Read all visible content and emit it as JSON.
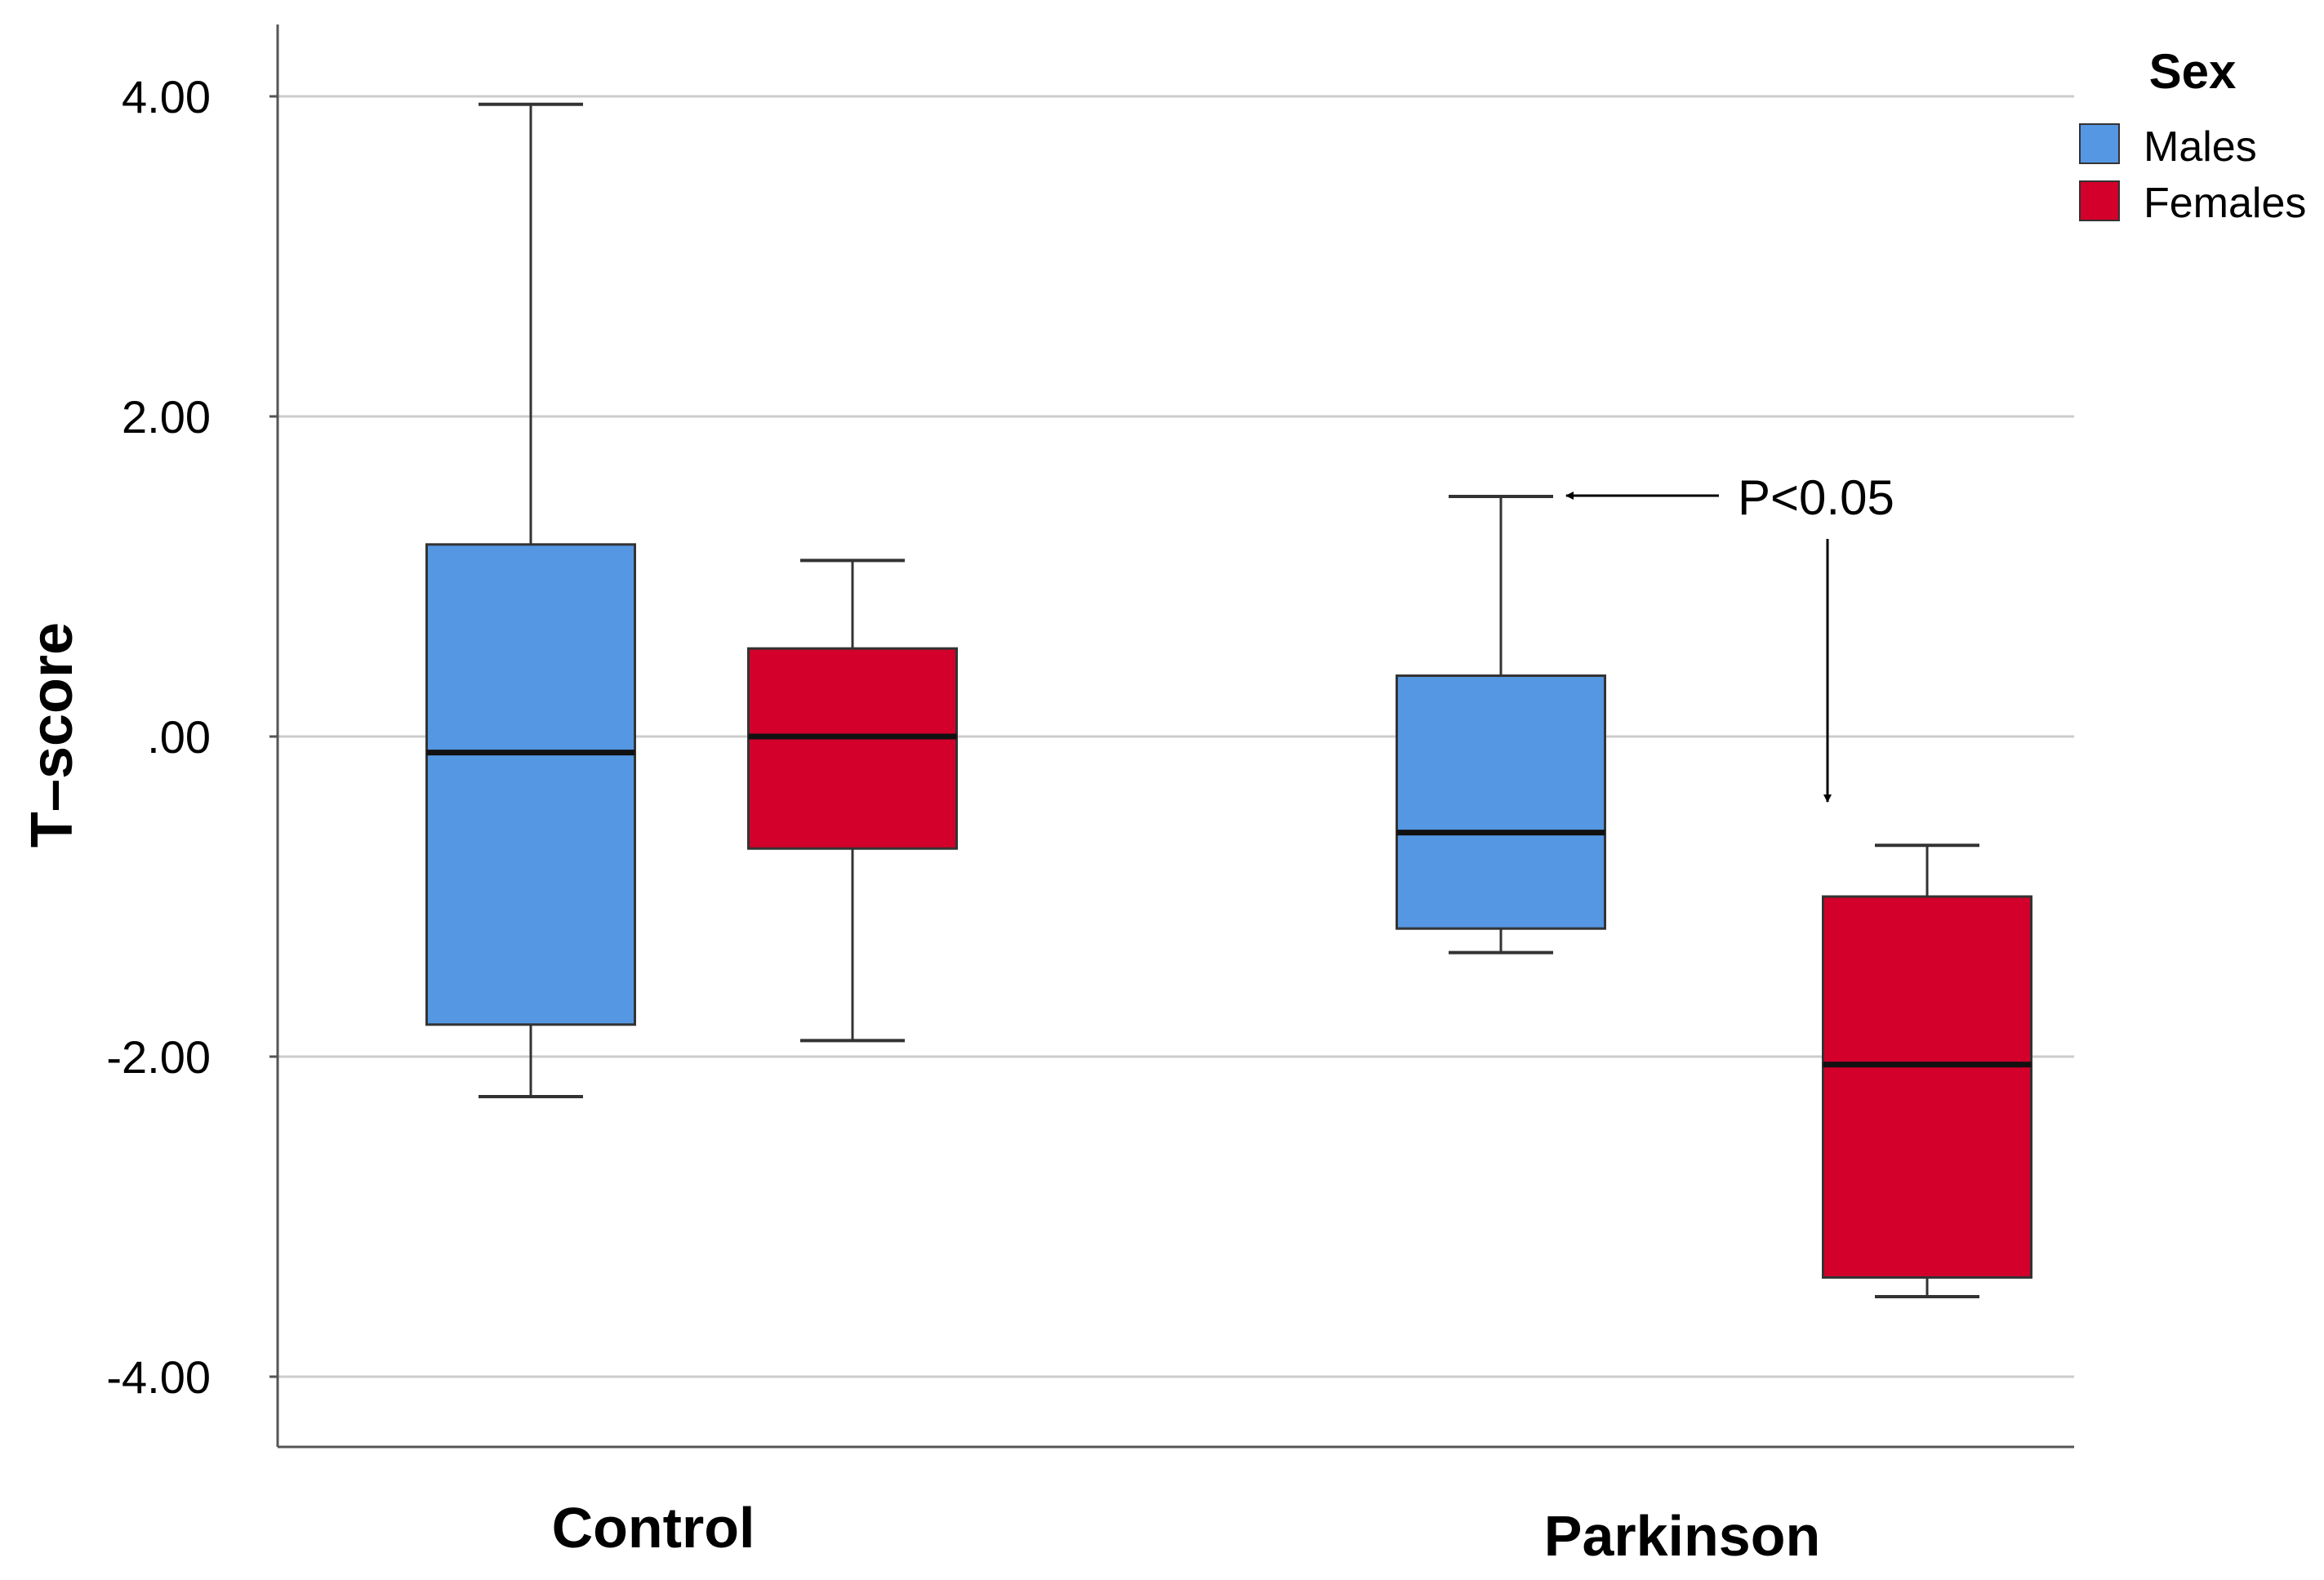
{
  "chart_data": {
    "type": "box",
    "title": "",
    "xlabel": "",
    "ylabel": "T–score",
    "ylim": [
      -4.45,
      4.45
    ],
    "yticks": [
      {
        "value": 4,
        "label": "4.00"
      },
      {
        "value": 2,
        "label": "2.00"
      },
      {
        "value": 0,
        "label": ".00"
      },
      {
        "value": -2,
        "label": "-2.00"
      },
      {
        "value": -4,
        "label": "-4.00"
      }
    ],
    "grid": true,
    "categories": [
      "Control",
      "Parkinson"
    ],
    "legend": {
      "title": "Sex",
      "position": "top-right",
      "entries": [
        {
          "name": "Males",
          "color": "#5597E2"
        },
        {
          "name": "Females",
          "color": "#D2002A"
        }
      ]
    },
    "series": [
      {
        "name": "Males",
        "color": "#5597E2",
        "boxes": [
          {
            "category": "Control",
            "min": -2.25,
            "q1": -1.8,
            "median": -0.1,
            "q3": 1.2,
            "max": 3.95
          },
          {
            "category": "Parkinson",
            "min": -1.35,
            "q1": -1.2,
            "median": -0.6,
            "q3": 0.38,
            "max": 1.5
          }
        ]
      },
      {
        "name": "Females",
        "color": "#D2002A",
        "boxes": [
          {
            "category": "Control",
            "min": -1.9,
            "q1": -0.7,
            "median": 0.0,
            "q3": 0.55,
            "max": 1.1
          },
          {
            "category": "Parkinson",
            "min": -3.5,
            "q1": -3.38,
            "median": -2.05,
            "q3": -1.0,
            "max": -0.68
          }
        ]
      }
    ],
    "annotations": [
      {
        "text": "P<0.05",
        "note": "arrows point to Parkinson Males max whisker and Parkinson Females max whisker"
      }
    ]
  }
}
